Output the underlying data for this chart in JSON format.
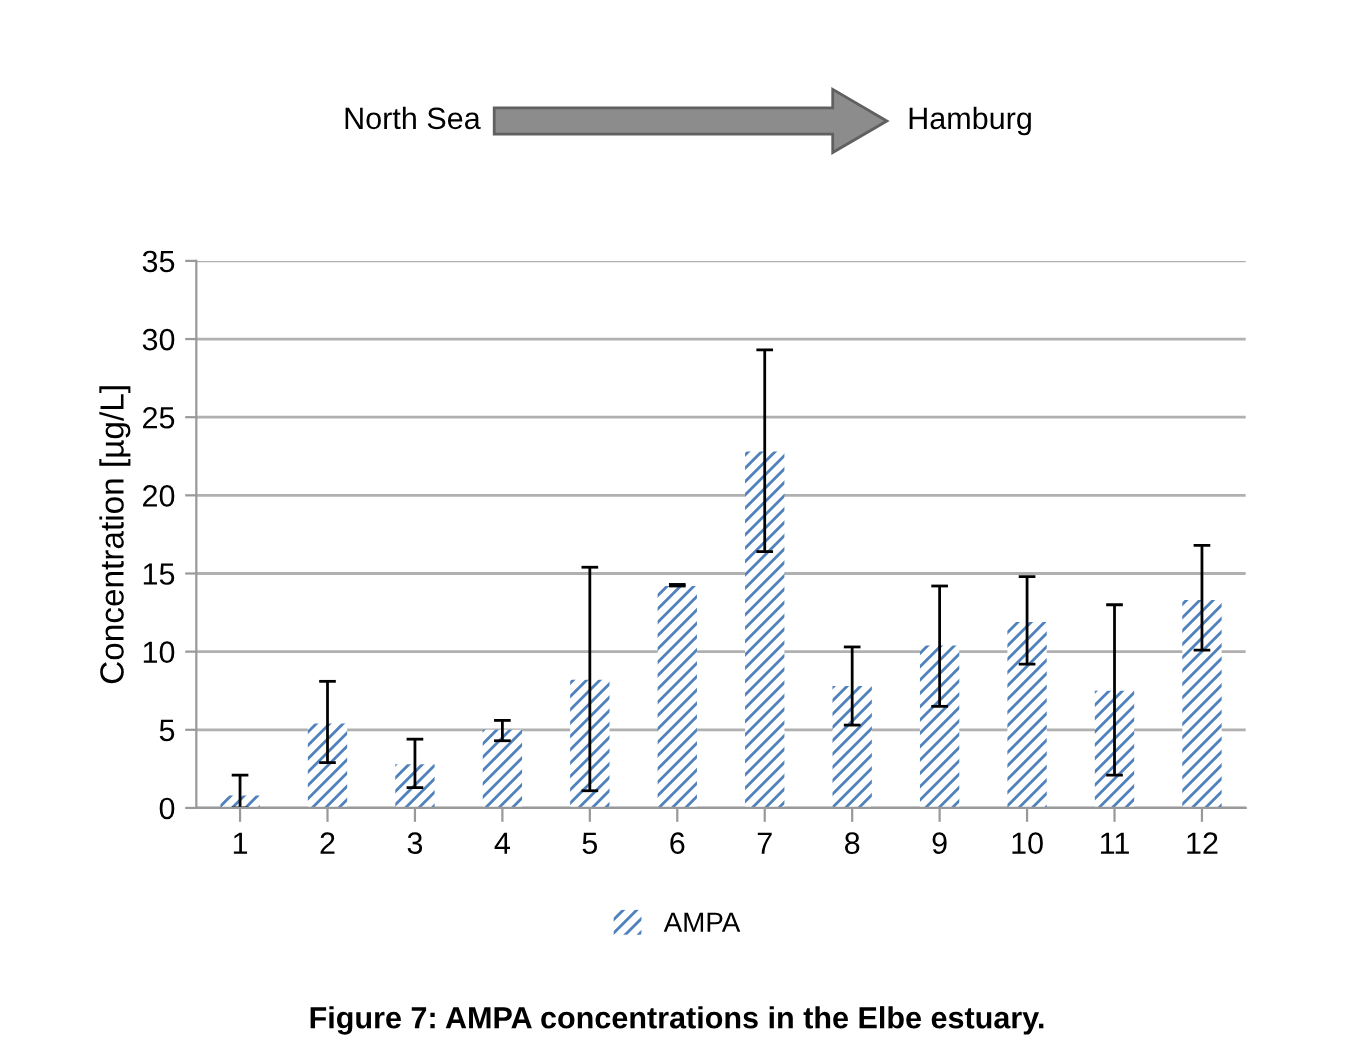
{
  "chart_data": {
    "type": "bar",
    "ylabel": "Concentration [µg/L]",
    "categories": [
      "1",
      "2",
      "3",
      "4",
      "5",
      "6",
      "7",
      "8",
      "9",
      "10",
      "11",
      "12"
    ],
    "series": [
      {
        "name": "AMPA",
        "color": "#4f81bd",
        "values": [
          0.8,
          5.4,
          2.8,
          5.0,
          8.2,
          14.2,
          22.8,
          7.8,
          10.4,
          11.9,
          7.5,
          13.3
        ],
        "errors": [
          [
            0,
            2.1
          ],
          [
            2.9,
            8.1
          ],
          [
            1.3,
            4.4
          ],
          [
            4.3,
            5.6
          ],
          [
            1.1,
            15.4
          ],
          [
            14.2,
            14.3
          ],
          [
            16.4,
            29.3
          ],
          [
            5.3,
            10.3
          ],
          [
            6.5,
            14.2
          ],
          [
            9.2,
            14.8
          ],
          [
            2.1,
            13.0
          ],
          [
            10.1,
            16.8
          ]
        ]
      }
    ],
    "ylim": [
      0,
      35
    ],
    "yticks": [
      0,
      5,
      10,
      15,
      20,
      25,
      30,
      35
    ],
    "grid": "y",
    "legend": "bottom",
    "annotations": [
      "North Sea",
      "Hamburg",
      "Figure 7: AMPA concentrations in the Elbe estuary."
    ]
  }
}
